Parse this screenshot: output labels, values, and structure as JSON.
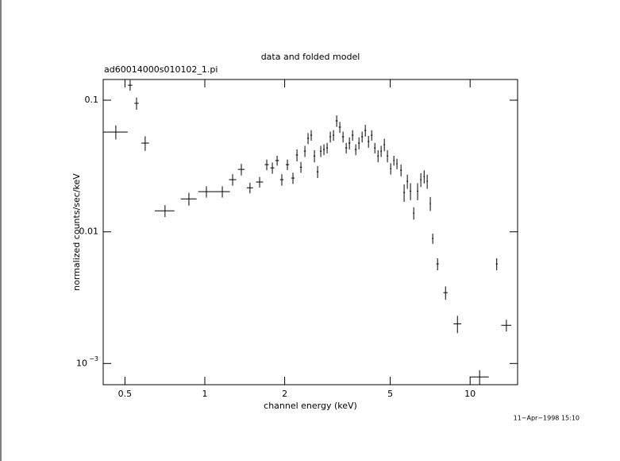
{
  "chart_data": {
    "type": "scatter",
    "title": "data and folded model",
    "subtitle": "ad60014000s010102_1.pi",
    "xlabel": "channel energy (keV)",
    "ylabel": "normalized counts/sec/keV",
    "timestamp": "11−Apr−1998 15:10",
    "xscale": "log",
    "yscale": "log",
    "xlim": [
      0.414,
      15.1
    ],
    "ylim": [
      0.00069,
      0.1436
    ],
    "xticks": [
      0.5,
      1,
      2,
      5,
      10
    ],
    "yticks": [
      0.1,
      0.01,
      {
        "value": 0.001,
        "label": "10",
        "exponent": "−3"
      }
    ],
    "color": "#000000",
    "x": [
      0.462,
      0.523,
      0.553,
      0.596,
      0.708,
      0.871,
      1.014,
      1.164,
      1.273,
      1.373,
      1.48,
      1.609,
      1.712,
      1.797,
      1.873,
      1.951,
      2.048,
      2.149,
      2.225,
      2.303,
      2.384,
      2.45,
      2.518,
      2.589,
      2.662,
      2.736,
      2.812,
      2.891,
      2.972,
      3.055,
      3.141,
      3.228,
      3.319,
      3.412,
      3.508,
      3.606,
      3.707,
      3.811,
      3.917,
      4.027,
      4.14,
      4.256,
      4.375,
      4.497,
      4.62,
      4.75,
      4.88,
      5.02,
      5.16,
      5.3,
      5.49,
      5.64,
      5.8,
      5.96,
      6.13,
      6.34,
      6.52,
      6.71,
      6.89,
      7.08,
      7.23,
      7.54,
      8.08,
      8.96,
      10.86,
      12.6,
      13.7
    ],
    "x_err": [
      0.05,
      0.01,
      0.01,
      0.02,
      0.06,
      0.06,
      0.07,
      0.08,
      0.04,
      0.04,
      0.04,
      0.05,
      0.03,
      0.03,
      0.03,
      0.03,
      0.03,
      0.03,
      0.02,
      0.02,
      0.02,
      0.02,
      0.02,
      0.02,
      0.02,
      0.02,
      0.02,
      0.02,
      0.02,
      0.02,
      0.03,
      0.03,
      0.03,
      0.03,
      0.03,
      0.03,
      0.03,
      0.03,
      0.03,
      0.03,
      0.03,
      0.03,
      0.03,
      0.03,
      0.03,
      0.03,
      0.03,
      0.03,
      0.03,
      0.03,
      0.04,
      0.04,
      0.04,
      0.04,
      0.04,
      0.04,
      0.04,
      0.04,
      0.04,
      0.04,
      0.05,
      0.08,
      0.15,
      0.3,
      0.9,
      0.1,
      0.6
    ],
    "y": [
      0.0573,
      0.13,
      0.0946,
      0.0472,
      0.01445,
      0.0178,
      0.0202,
      0.0202,
      0.0249,
      0.0298,
      0.0216,
      0.0239,
      0.0324,
      0.0306,
      0.0348,
      0.0249,
      0.0324,
      0.0256,
      0.0383,
      0.031,
      0.041,
      0.0513,
      0.0542,
      0.0377,
      0.0286,
      0.041,
      0.0422,
      0.0434,
      0.0527,
      0.0542,
      0.0697,
      0.0624,
      0.0527,
      0.0434,
      0.0472,
      0.0542,
      0.0422,
      0.0472,
      0.0527,
      0.0589,
      0.0485,
      0.0542,
      0.0434,
      0.0377,
      0.041,
      0.0459,
      0.0377,
      0.0302,
      0.0348,
      0.0329,
      0.0294,
      0.0199,
      0.0242,
      0.0204,
      0.01387,
      0.0204,
      0.0249,
      0.0263,
      0.0242,
      0.0164,
      0.0089,
      0.0057,
      0.00345,
      0.002,
      0.00079,
      0.0057,
      0.00195
    ],
    "y_err": [
      0.007,
      0.012,
      0.01,
      0.006,
      0.0015,
      0.002,
      0.002,
      0.002,
      0.0025,
      0.003,
      0.002,
      0.0022,
      0.003,
      0.003,
      0.003,
      0.0025,
      0.003,
      0.0025,
      0.004,
      0.003,
      0.004,
      0.005,
      0.005,
      0.004,
      0.003,
      0.004,
      0.004,
      0.004,
      0.005,
      0.005,
      0.007,
      0.006,
      0.005,
      0.004,
      0.005,
      0.005,
      0.004,
      0.005,
      0.005,
      0.006,
      0.005,
      0.005,
      0.004,
      0.004,
      0.004,
      0.005,
      0.004,
      0.003,
      0.003,
      0.003,
      0.003,
      0.003,
      0.003,
      0.003,
      0.0015,
      0.003,
      0.003,
      0.003,
      0.003,
      0.002,
      0.0008,
      0.0006,
      0.0004,
      0.0003,
      0.0001,
      0.0006,
      0.0002
    ]
  }
}
